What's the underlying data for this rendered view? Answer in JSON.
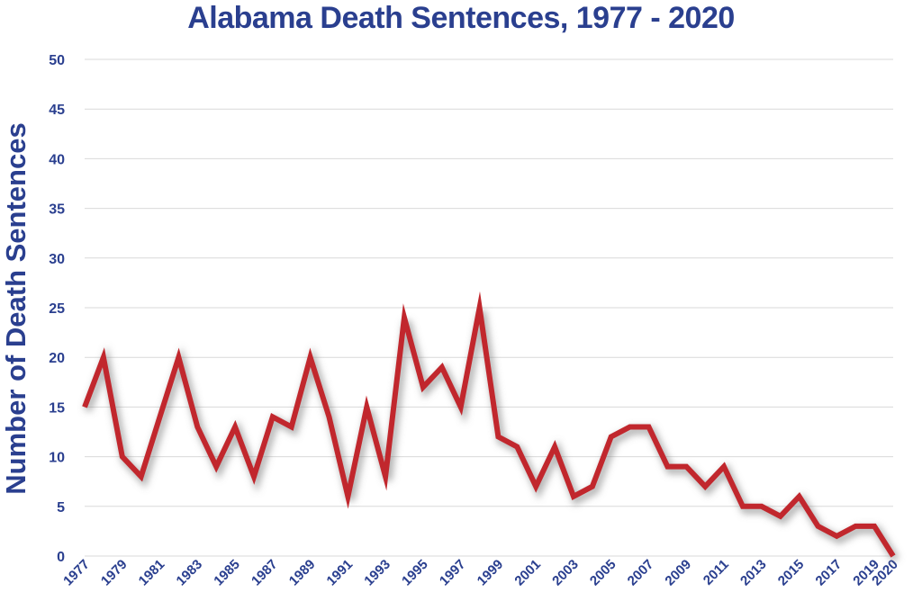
{
  "chart_data": {
    "type": "line",
    "title": "Alabama Death Sentences, 1977 - 2020",
    "xlabel": "",
    "ylabel": "Number of Death Sentences",
    "ylim": [
      0,
      50
    ],
    "yticks": [
      "0",
      "5",
      "10",
      "15",
      "20",
      "25",
      "30",
      "35",
      "40",
      "45",
      "50"
    ],
    "xticks": [
      "1977",
      "1979",
      "1981",
      "1983",
      "1985",
      "1987",
      "1989",
      "1991",
      "1993",
      "1995",
      "1997",
      "1999",
      "2001",
      "2003",
      "2005",
      "2007",
      "2009",
      "2011",
      "2013",
      "2015",
      "2017",
      "2019",
      "2020"
    ],
    "grid": true,
    "legend": "none",
    "line_color": "#c1272d",
    "text_color": "#2a3f8f",
    "series": [
      {
        "x": [
          1977,
          1978,
          1979,
          1980,
          1981,
          1982,
          1983,
          1984,
          1985,
          1986,
          1987,
          1988,
          1989,
          1990,
          1991,
          1992,
          1993,
          1994,
          1995,
          1996,
          1997,
          1998,
          1999,
          2000,
          2001,
          2002,
          2003,
          2004,
          2005,
          2006,
          2007,
          2008,
          2009,
          2010,
          2011,
          2012,
          2013,
          2014,
          2015,
          2016,
          2017,
          2018,
          2019,
          2020
        ],
        "values": [
          15,
          20,
          10,
          8,
          14,
          20,
          13,
          9,
          13,
          8,
          14,
          13,
          20,
          14,
          6,
          15,
          8,
          24,
          17,
          19,
          15,
          25,
          12,
          11,
          7,
          11,
          6,
          7,
          12,
          13,
          13,
          9,
          9,
          7,
          9,
          5,
          5,
          4,
          6,
          3,
          2,
          3,
          3,
          0
        ]
      }
    ]
  }
}
